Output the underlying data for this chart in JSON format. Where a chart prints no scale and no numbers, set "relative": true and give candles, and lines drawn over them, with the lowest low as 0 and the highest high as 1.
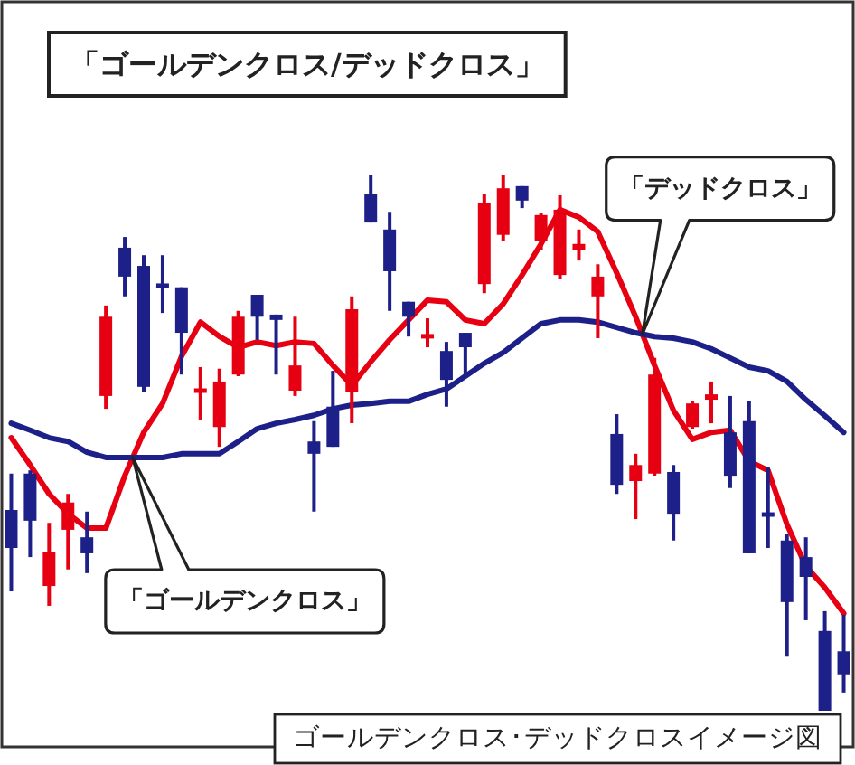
{
  "chart_data": {
    "type": "candlestick",
    "title": "「ゴールデンクロス/デッドクロス」",
    "relative": true,
    "categories": [
      null,
      null,
      null,
      null,
      null,
      null,
      null,
      null,
      null,
      null,
      null,
      null,
      null,
      null,
      null,
      null,
      null,
      null,
      null,
      null,
      null,
      null,
      null,
      null,
      null,
      null,
      null,
      null,
      null,
      null,
      null,
      null,
      null,
      null,
      null,
      null,
      null,
      null,
      null,
      null,
      null,
      null,
      null,
      null,
      null
    ],
    "ohlc": [
      [
        0.375,
        0.443,
        0.223,
        0.304
      ],
      [
        0.443,
        0.449,
        0.287,
        0.355
      ],
      [
        0.233,
        0.351,
        0.196,
        0.297
      ],
      [
        0.338,
        0.405,
        0.264,
        0.389
      ],
      [
        0.324,
        0.372,
        0.257,
        0.294
      ],
      [
        0.588,
        0.757,
        0.564,
        0.736
      ],
      [
        0.865,
        0.885,
        0.774,
        0.811
      ],
      [
        0.831,
        0.851,
        0.595,
        0.605
      ],
      [
        0.797,
        0.851,
        0.743,
        0.791
      ],
      [
        0.791,
        0.791,
        0.628,
        0.706
      ],
      [
        0.595,
        0.642,
        0.544,
        0.601
      ],
      [
        0.53,
        0.639,
        0.493,
        0.615
      ],
      [
        0.628,
        0.747,
        0.625,
        0.736
      ],
      [
        0.777,
        0.777,
        0.693,
        0.736
      ],
      [
        0.74,
        0.74,
        0.628,
        0.73
      ],
      [
        0.598,
        0.736,
        0.588,
        0.645
      ],
      [
        0.503,
        0.541,
        0.372,
        0.48
      ],
      [
        0.568,
        0.635,
        0.493,
        0.493
      ],
      [
        0.595,
        0.774,
        0.537,
        0.75
      ],
      [
        0.966,
        1.0,
        0.912,
        0.912
      ],
      [
        0.899,
        0.932,
        0.747,
        0.821
      ],
      [
        0.764,
        0.764,
        0.699,
        0.736
      ],
      [
        0.696,
        0.733,
        0.679,
        0.703
      ],
      [
        0.672,
        0.689,
        0.568,
        0.618
      ],
      [
        0.706,
        0.706,
        0.628,
        0.679
      ],
      [
        0.797,
        0.966,
        0.78,
        0.949
      ],
      [
        0.889,
        1.0,
        0.878,
        0.976
      ],
      [
        0.98,
        0.98,
        0.939,
        0.953
      ],
      [
        0.878,
        0.929,
        0.861,
        0.926
      ],
      [
        0.814,
        0.963,
        0.807,
        0.936
      ],
      [
        0.861,
        0.899,
        0.841,
        0.872
      ],
      [
        0.774,
        0.834,
        0.696,
        0.811
      ],
      [
        0.517,
        0.554,
        0.405,
        0.422
      ],
      [
        0.429,
        0.48,
        0.358,
        0.459
      ],
      [
        0.443,
        0.659,
        0.439,
        0.628
      ],
      [
        0.446,
        0.459,
        0.318,
        0.368
      ],
      [
        0.53,
        0.578,
        0.527,
        0.574
      ],
      [
        0.581,
        0.615,
        0.537,
        0.591
      ],
      [
        0.52,
        0.588,
        0.416,
        0.439
      ],
      [
        0.541,
        0.578,
        0.294,
        0.294
      ],
      [
        0.368,
        0.456,
        0.304,
        0.365
      ],
      [
        0.318,
        0.331,
        0.101,
        0.203
      ],
      [
        0.287,
        0.324,
        0.169,
        0.25
      ],
      [
        0.149,
        0.186,
        0.0,
        0.0
      ],
      [
        0.111,
        0.179,
        0.034,
        0.068
      ]
    ],
    "colors": [
      "#1d2088",
      "#1d2088",
      "#e60012",
      "#e60012",
      "#1d2088",
      "#e60012",
      "#1d2088",
      "#1d2088",
      "#1d2088",
      "#1d2088",
      "#e60012",
      "#e60012",
      "#e60012",
      "#1d2088",
      "#1d2088",
      "#e60012",
      "#1d2088",
      "#1d2088",
      "#e60012",
      "#1d2088",
      "#1d2088",
      "#1d2088",
      "#e60012",
      "#1d2088",
      "#1d2088",
      "#e60012",
      "#e60012",
      "#1d2088",
      "#e60012",
      "#e60012",
      "#e60012",
      "#e60012",
      "#1d2088",
      "#e60012",
      "#e60012",
      "#1d2088",
      "#e60012",
      "#e60012",
      "#1d2088",
      "#1d2088",
      "#1d2088",
      "#1d2088",
      "#1d2088",
      "#1d2088",
      "#1d2088"
    ],
    "series": [
      {
        "type": "line",
        "color": "#e60012",
        "values": [
          0.51,
          0.459,
          0.405,
          0.368,
          0.341,
          0.341,
          0.439,
          0.52,
          0.574,
          0.662,
          0.726,
          0.699,
          0.679,
          0.689,
          0.682,
          0.689,
          0.686,
          0.645,
          0.608,
          0.652,
          0.693,
          0.73,
          0.767,
          0.764,
          0.73,
          0.723,
          0.76,
          0.814,
          0.872,
          0.936,
          0.922,
          0.895,
          0.818,
          0.736,
          0.645,
          0.561,
          0.507,
          0.52,
          0.524,
          0.466,
          0.449,
          0.348,
          0.27,
          0.23,
          0.182
        ]
      },
      {
        "type": "line",
        "color": "#1d2088",
        "values": [
          0.537,
          0.524,
          0.51,
          0.503,
          0.483,
          0.473,
          0.473,
          0.473,
          0.473,
          0.48,
          0.48,
          0.48,
          0.503,
          0.527,
          0.537,
          0.544,
          0.552,
          0.564,
          0.571,
          0.574,
          0.578,
          0.578,
          0.591,
          0.601,
          0.625,
          0.649,
          0.669,
          0.696,
          0.723,
          0.73,
          0.73,
          0.726,
          0.716,
          0.706,
          0.699,
          0.696,
          0.689,
          0.676,
          0.659,
          0.642,
          0.635,
          0.615,
          0.581,
          0.551,
          0.52
        ]
      }
    ],
    "annotations": [
      "「ゴールデンクロス」",
      "「デッドクロス」",
      "ゴールデンクロス･デッドクロスイメージ図"
    ]
  }
}
